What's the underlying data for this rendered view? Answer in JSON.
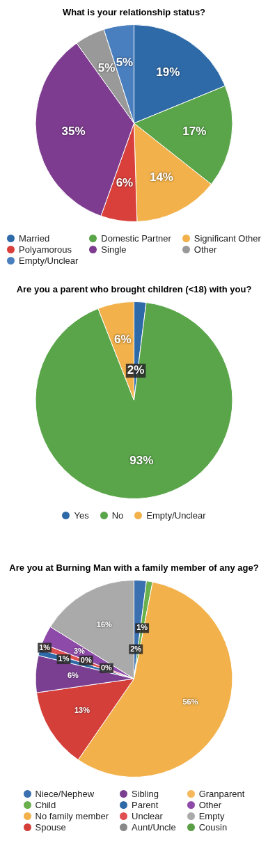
{
  "chart_data": [
    {
      "type": "pie",
      "title": "What is your relationship status?",
      "categories": [
        "Married",
        "Domestic Partner",
        "Significant Other",
        "Polyamorous",
        "Single",
        "Other",
        "Empty/Unclear"
      ],
      "values": [
        19,
        17,
        14,
        6,
        35,
        5,
        5
      ],
      "colors": [
        "#2f6aa8",
        "#5aa54a",
        "#f2b14a",
        "#d9403b",
        "#7d3c8f",
        "#999999",
        "#4a7fbf"
      ],
      "value_labels": [
        "19%",
        "17%",
        "14%",
        "6%",
        "35%",
        "5%",
        "5%"
      ],
      "legend": "bottom"
    },
    {
      "type": "pie",
      "title": "Are you a parent who brought children (<18) with you?",
      "categories": [
        "Yes",
        "No",
        "Empty/Unclear"
      ],
      "values": [
        2,
        93,
        6
      ],
      "colors": [
        "#2f6aa8",
        "#5aa54a",
        "#f2b14a"
      ],
      "value_labels": [
        "2%",
        "93%",
        "6%"
      ],
      "legend": "bottom"
    },
    {
      "type": "pie",
      "title": "Are you at Burning Man with a family member of any age?",
      "categories": [
        "Niece/Nephew",
        "Child",
        "No family member",
        "Spouse",
        "Sibling",
        "Parent",
        "Unclear",
        "Aunt/Uncle",
        "Granparent",
        "Other",
        "Empty",
        "Cousin"
      ],
      "values": [
        2,
        1,
        56,
        13,
        6,
        1,
        1,
        0,
        0,
        3,
        16,
        0
      ],
      "colors": [
        "#3a6fb0",
        "#6ab04c",
        "#f2b14a",
        "#d43f3a",
        "#7b3f91",
        "#2f6aa8",
        "#e05050",
        "#888888",
        "#f5b85a",
        "#8e4aa8",
        "#aaaaaa",
        "#5a9e45"
      ],
      "value_labels": [
        "2%",
        "1%",
        "56%",
        "13%",
        "6%",
        "1%",
        "1%",
        "0%",
        "0%",
        "3%",
        "16%",
        null
      ],
      "legend": "bottom"
    }
  ]
}
